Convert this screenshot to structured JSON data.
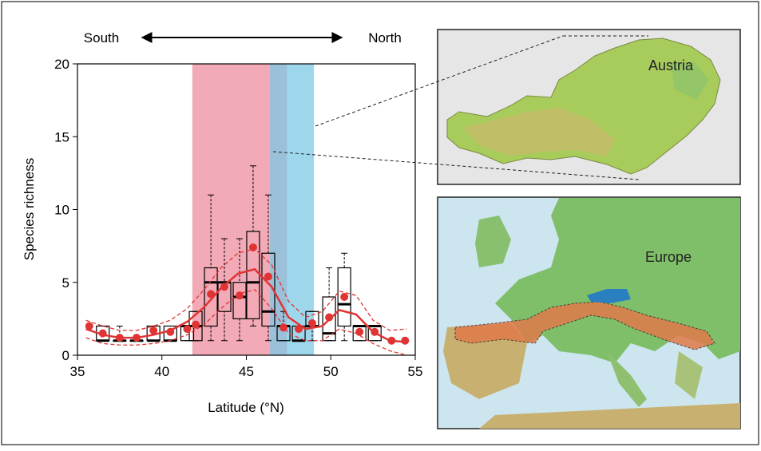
{
  "chart_data": {
    "type": "box",
    "xlabel": "Latitude (°N)",
    "ylabel": "Species richness",
    "xlim": [
      35,
      55
    ],
    "xticks": [
      35,
      40,
      45,
      50,
      55
    ],
    "ylim": [
      0,
      20
    ],
    "yticks": [
      0,
      5,
      10,
      15,
      20
    ],
    "annotations": {
      "south": "South",
      "north": "North"
    },
    "bands": [
      {
        "from": 41.8,
        "to": 47.4,
        "color": "#f2aab6"
      },
      {
        "from": 46.4,
        "to": 49.0,
        "color": "#7ec8e6"
      }
    ],
    "boxes": {
      "x": [
        36.5,
        37.5,
        38.5,
        39.5,
        40.5,
        41.5,
        42.0,
        42.9,
        43.7,
        44.6,
        45.4,
        46.3,
        47.2,
        48.1,
        48.9,
        49.9,
        50.8,
        51.7,
        52.6
      ],
      "low": [
        1,
        1,
        1,
        1,
        1,
        1,
        1,
        1,
        1,
        1,
        2,
        1,
        1,
        1,
        1,
        1,
        1,
        1,
        1
      ],
      "q1": [
        1,
        1,
        1,
        1,
        1,
        1,
        1,
        2,
        3,
        2.5,
        2.5,
        2,
        1,
        1,
        2,
        1,
        2,
        1,
        1
      ],
      "median": [
        1,
        1,
        1,
        1,
        1,
        2,
        2,
        5,
        5,
        4,
        5,
        3,
        2,
        1,
        2,
        1.5,
        3.5,
        2,
        2
      ],
      "q3": [
        2,
        1,
        1,
        2,
        2,
        2,
        3,
        6,
        5,
        5,
        8.5,
        7,
        2,
        2,
        3,
        4,
        6,
        2,
        2
      ],
      "high": [
        2,
        2,
        1,
        2,
        2,
        2,
        3,
        11,
        8,
        8,
        13,
        11,
        3,
        2,
        3,
        6,
        7,
        2,
        2
      ]
    },
    "means": {
      "color": "#e03434",
      "x": [
        35.7,
        36.5,
        37.5,
        38.5,
        39.5,
        40.5,
        41.5,
        42.0,
        42.9,
        43.7,
        44.6,
        45.4,
        46.3,
        47.2,
        48.1,
        48.9,
        49.9,
        50.8,
        51.7,
        52.6,
        53.6,
        54.4
      ],
      "values": [
        2.0,
        1.5,
        1.2,
        1.2,
        1.7,
        1.6,
        1.8,
        2.1,
        4.2,
        4.7,
        4.1,
        7.4,
        5.4,
        1.9,
        1.8,
        2.2,
        2.6,
        4.0,
        1.6,
        1.6,
        1.0,
        1.0
      ]
    },
    "fit": {
      "color": "#e03434",
      "x": [
        35.5,
        36.5,
        37.5,
        38.5,
        39.5,
        40.5,
        41.5,
        42.5,
        43.5,
        44.5,
        45.5,
        46.5,
        47.5,
        48.5,
        49.5,
        50.5,
        51.5,
        52.5,
        53.5,
        54.5
      ],
      "values": [
        1.8,
        1.4,
        1.2,
        1.2,
        1.4,
        1.7,
        2.3,
        3.3,
        4.6,
        5.6,
        5.9,
        4.7,
        2.6,
        1.8,
        2.0,
        3.1,
        2.8,
        1.6,
        1.0,
        0.9
      ],
      "upper": [
        2.4,
        2.0,
        1.7,
        1.7,
        2.0,
        2.4,
        3.2,
        4.5,
        6.0,
        7.0,
        7.3,
        6.2,
        3.7,
        2.6,
        3.0,
        4.4,
        4.1,
        2.4,
        1.7,
        1.8
      ],
      "lower": [
        1.2,
        0.8,
        0.7,
        0.7,
        0.8,
        1.0,
        1.4,
        2.1,
        3.2,
        4.2,
        4.5,
        3.2,
        1.5,
        1.0,
        1.0,
        1.8,
        1.5,
        0.8,
        0.3,
        0.0
      ]
    }
  },
  "insets": {
    "austria": "Austria",
    "europe": "Europe"
  }
}
